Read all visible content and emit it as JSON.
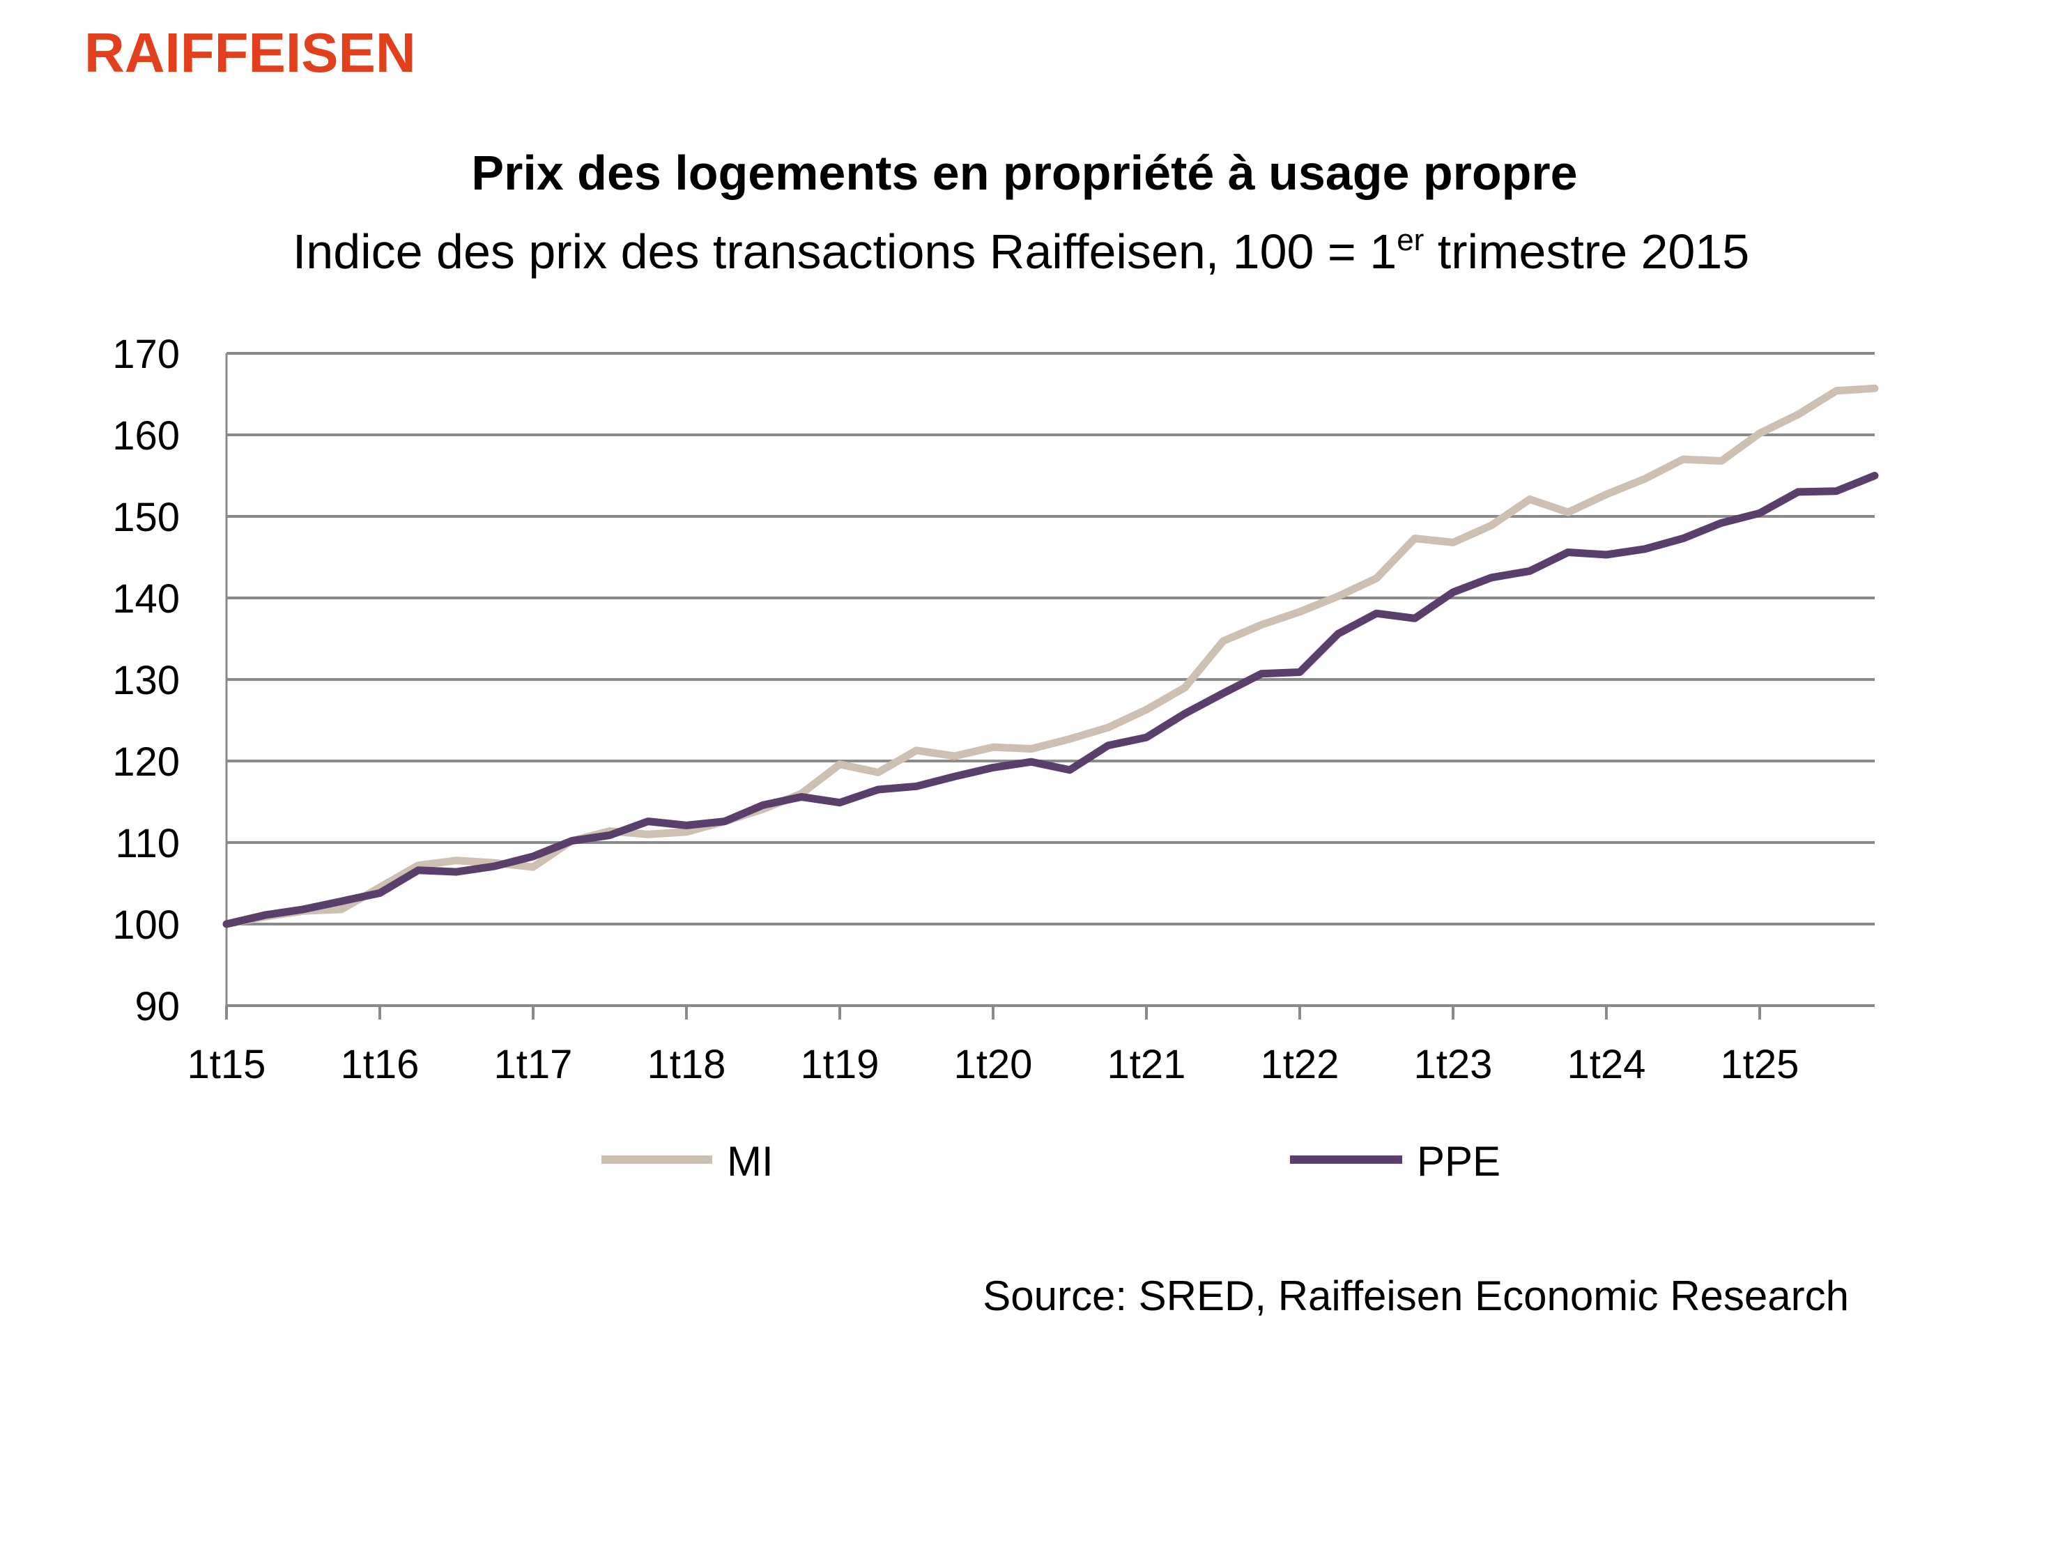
{
  "brand": {
    "name": "RAIFFEISEN",
    "color": "#e2401c"
  },
  "colors": {
    "text": "#000000",
    "grid": "#8a8a8a",
    "axis": "#8a8a8a"
  },
  "chart_data": {
    "type": "line",
    "title": "Prix des logements en propriété à usage propre",
    "subtitle": {
      "before": "Indice des prix des transactions Raiffeisen, 100 = 1",
      "sup": "er",
      "after": " trimestre 2015"
    },
    "xlabel": "",
    "ylabel": "",
    "ylim": [
      90,
      170
    ],
    "yticks": [
      "90",
      "100",
      "110",
      "120",
      "130",
      "140",
      "150",
      "160",
      "170"
    ],
    "xticks": [
      "1t15",
      "1t16",
      "1t17",
      "1t18",
      "1t19",
      "1t20",
      "1t21",
      "1t22",
      "1t23",
      "1t24",
      "1t25"
    ],
    "x": [
      "1t15",
      "2t15",
      "3t15",
      "4t15",
      "1t16",
      "2t16",
      "3t16",
      "4t16",
      "1t17",
      "2t17",
      "3t17",
      "4t17",
      "1t18",
      "2t18",
      "3t18",
      "4t18",
      "1t19",
      "2t19",
      "3t19",
      "4t19",
      "1t20",
      "2t20",
      "3t20",
      "4t20",
      "1t21",
      "2t21",
      "3t21",
      "4t21",
      "1t22",
      "2t22",
      "3t22",
      "4t22",
      "1t23",
      "2t23",
      "3t23",
      "4t23",
      "1t24",
      "2t24",
      "3t24",
      "4t24",
      "1t25",
      "2t25",
      "3t25",
      "4t25"
    ],
    "grid": true,
    "legend": "bottom",
    "series": [
      {
        "name": "MI",
        "color": "#cdc0b3",
        "values": [
          100.0,
          100.9,
          101.6,
          101.8,
          104.5,
          107.2,
          107.8,
          107.5,
          107.0,
          110.2,
          111.4,
          111.0,
          111.3,
          112.6,
          114.1,
          116.0,
          119.6,
          118.6,
          121.3,
          120.6,
          121.7,
          121.5,
          122.7,
          124.1,
          126.3,
          129.0,
          134.7,
          136.7,
          138.3,
          140.2,
          142.4,
          147.3,
          146.8,
          148.9,
          152.1,
          150.5,
          152.7,
          154.6,
          157.0,
          156.8,
          160.2,
          162.5,
          165.4,
          165.7
        ]
      },
      {
        "name": "PPE",
        "color": "#5a3e6b",
        "values": [
          100.0,
          101.1,
          101.8,
          102.8,
          103.8,
          106.6,
          106.4,
          107.1,
          108.3,
          110.2,
          110.9,
          112.6,
          112.1,
          112.6,
          114.6,
          115.6,
          114.9,
          116.5,
          116.9,
          118.1,
          119.2,
          119.9,
          118.9,
          121.9,
          122.9,
          125.8,
          128.3,
          130.7,
          130.9,
          135.6,
          138.1,
          137.5,
          140.7,
          142.5,
          143.3,
          145.6,
          145.3,
          146.0,
          147.3,
          149.2,
          150.4,
          153.0,
          153.1,
          155.0
        ]
      }
    ],
    "source": "Source: SRED, Raiffeisen Economic Research"
  }
}
